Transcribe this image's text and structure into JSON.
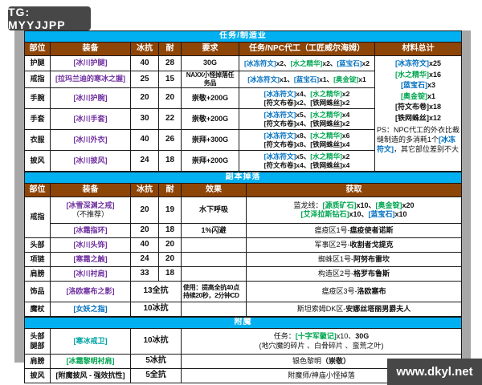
{
  "page": {
    "tg_badge": "TG: MYYJJPP",
    "watermark": "www.dkyl.net"
  },
  "colors": {
    "section_band": "#00b0f0",
    "header_row": "#8e4508",
    "item_epic_purple": "#7030a0",
    "item_rare_blue": "#0070c0",
    "item_green": "#00a550",
    "item_teal": "#00a3a3",
    "badge_gray": "#474747",
    "strip_gray": "#a7a7a7"
  },
  "s1": {
    "title": "任务/制造业",
    "headers": [
      "部位",
      "装备",
      "冰抗",
      "耐",
      "要求",
      "任务/NPC代工（工匠威尔海姆）",
      "材料总计"
    ],
    "rows": [
      {
        "slot": "护腿",
        "item": [
          {
            "t": "[冰川护腿]",
            "c": "pu"
          }
        ],
        "res": "40",
        "sta": "28",
        "req": "30G",
        "mats": [
          [
            {
              "t": "[冰冻符文]",
              "c": "bl"
            },
            {
              "t": "x2、",
              "c": "bk"
            },
            {
              "t": "[水之精华]",
              "c": "gr"
            },
            {
              "t": "x2、",
              "c": "bk"
            },
            {
              "t": "[蓝宝石]",
              "c": "bl"
            },
            {
              "t": "x2",
              "c": "bk"
            }
          ]
        ]
      },
      {
        "slot": "戒指",
        "item": [
          {
            "t": "[拉玛兰迪的寒冰之握]",
            "c": "pu"
          }
        ],
        "res": "25",
        "sta": "15",
        "req": "NAXX小怪掉落任务品",
        "mats": [
          [
            {
              "t": "[冰冻符文]",
              "c": "bl"
            },
            {
              "t": "x1、",
              "c": "bk"
            },
            {
              "t": "[蓝宝石]",
              "c": "bl"
            },
            {
              "t": "x1、",
              "c": "bk"
            },
            {
              "t": "[奥金锭]",
              "c": "gr"
            },
            {
              "t": "x1",
              "c": "bk"
            }
          ]
        ]
      },
      {
        "slot": "手腕",
        "item": [
          {
            "t": "[冰川护腕]",
            "c": "pu"
          }
        ],
        "res": "20",
        "sta": "20",
        "req": "崇敬+200G",
        "mats": [
          [
            {
              "t": "[冰冻符文]",
              "c": "bl"
            },
            {
              "t": "x4、",
              "c": "bk"
            },
            {
              "t": "[水之精华]",
              "c": "gr"
            },
            {
              "t": "x2",
              "c": "bk"
            }
          ],
          [
            {
              "t": "[符文布卷]",
              "c": "bk"
            },
            {
              "t": "x2、",
              "c": "bk"
            },
            {
              "t": "[铁网蛛丝]",
              "c": "bk"
            },
            {
              "t": "x2",
              "c": "bk"
            }
          ]
        ]
      },
      {
        "slot": "手套",
        "item": [
          {
            "t": "[冰川手套]",
            "c": "pu"
          }
        ],
        "res": "30",
        "sta": "22",
        "req": "崇敬+200G",
        "mats": [
          [
            {
              "t": "[冰冻符文]",
              "c": "bl"
            },
            {
              "t": "x5、",
              "c": "bk"
            },
            {
              "t": "[水之精华]",
              "c": "gr"
            },
            {
              "t": "x4",
              "c": "bk"
            }
          ],
          [
            {
              "t": "[符文布卷]",
              "c": "bk"
            },
            {
              "t": "x4、",
              "c": "bk"
            },
            {
              "t": "[铁网蛛丝]",
              "c": "bk"
            },
            {
              "t": "x2",
              "c": "bk"
            }
          ]
        ]
      },
      {
        "slot": "衣服",
        "item": [
          {
            "t": "[冰川外衣]",
            "c": "pu"
          }
        ],
        "res": "40",
        "sta": "26",
        "req": "崇拜+300G",
        "mats": [
          [
            {
              "t": "[冰冻符文]",
              "c": "bl"
            },
            {
              "t": "x8、",
              "c": "bk"
            },
            {
              "t": "[水之精华]",
              "c": "gr"
            },
            {
              "t": "x6",
              "c": "bk"
            }
          ],
          [
            {
              "t": "[符文布卷]",
              "c": "bk"
            },
            {
              "t": "x8、",
              "c": "bk"
            },
            {
              "t": "[铁网蛛丝]",
              "c": "bk"
            },
            {
              "t": "x4",
              "c": "bk"
            }
          ]
        ]
      },
      {
        "slot": "披风",
        "item": [
          {
            "t": "[冰川披风]",
            "c": "pu"
          }
        ],
        "res": "24",
        "sta": "18",
        "req": "崇拜+200G",
        "mats": [
          [
            {
              "t": "[冰冻符文]",
              "c": "bl"
            },
            {
              "t": "x5、",
              "c": "bk"
            },
            {
              "t": "[水之精华]",
              "c": "gr"
            },
            {
              "t": "x2",
              "c": "bk"
            }
          ],
          [
            {
              "t": "[符文布卷]",
              "c": "bk"
            },
            {
              "t": "x4、",
              "c": "bk"
            },
            {
              "t": "[铁网蛛丝]",
              "c": "bk"
            },
            {
              "t": "x4",
              "c": "bk"
            }
          ]
        ]
      }
    ],
    "totals": [
      [
        {
          "t": "[冰冻符文]",
          "c": "bl"
        },
        {
          "t": "x25",
          "c": "bk"
        }
      ],
      [
        {
          "t": "[水之精华]",
          "c": "gr"
        },
        {
          "t": "x16",
          "c": "bk"
        }
      ],
      [
        {
          "t": "[蓝宝石]",
          "c": "bl"
        },
        {
          "t": "x3",
          "c": "bk"
        }
      ],
      [
        {
          "t": "[奥金锭]",
          "c": "gr"
        },
        {
          "t": "x1",
          "c": "bk"
        }
      ],
      [
        {
          "t": "[符文布卷]",
          "c": "bk"
        },
        {
          "t": "x18",
          "c": "bk"
        }
      ],
      [
        {
          "t": "[铁网蛛丝]",
          "c": "bk"
        },
        {
          "t": "x12",
          "c": "bk"
        }
      ]
    ],
    "ps": [
      {
        "t": "PS：NPC代工的外衣比裁缝制造的多消耗1个",
        "c": "n"
      },
      {
        "t": "[冰冻符文]",
        "c": "bl"
      },
      {
        "t": "，其它部位差别不大",
        "c": "n"
      }
    ]
  },
  "s2": {
    "title": "副本掉落",
    "headers": [
      "部位",
      "装备",
      "冰抗",
      "耐",
      "效果",
      "获取"
    ],
    "rows": [
      {
        "slot": "戒指",
        "item_lines": [
          [
            {
              "t": "[冰雪深渊之戒]",
              "c": "pu"
            }
          ],
          [
            {
              "t": "（不推荐）",
              "c": "n"
            }
          ]
        ],
        "res": "20",
        "sta": "19",
        "eff": [
          [
            {
              "t": "水下呼吸",
              "c": "bk"
            }
          ]
        ],
        "obtain": [
          [
            {
              "t": "蓝龙线：",
              "c": "n"
            },
            {
              "t": "[源质矿石]",
              "c": "gr"
            },
            {
              "t": "x10、",
              "c": "bk"
            },
            {
              "t": "[奥金锭]",
              "c": "gr"
            },
            {
              "t": "x20",
              "c": "bk"
            }
          ],
          [
            {
              "t": "[艾泽拉斯钻石]",
              "c": "gr"
            },
            {
              "t": "x10、",
              "c": "bk"
            },
            {
              "t": "[蓝宝石]",
              "c": "bl"
            },
            {
              "t": "x10",
              "c": "bk"
            }
          ]
        ]
      },
      {
        "item": [
          {
            "t": "[冰霜指环]",
            "c": "pu"
          }
        ],
        "res": "20",
        "sta": "18",
        "eff": [
          [
            {
              "t": "1%闪避",
              "c": "bk"
            }
          ]
        ],
        "obtain": [
          [
            {
              "t": "瘟疫区1号-",
              "c": "n"
            },
            {
              "t": "瘟疫使者诺斯",
              "c": "bk"
            }
          ]
        ]
      },
      {
        "slot": "头部",
        "item": [
          {
            "t": "[冰川头饰]",
            "c": "pu"
          }
        ],
        "res": "40",
        "sta": "20",
        "obtain": [
          [
            {
              "t": "军事区2号-",
              "c": "n"
            },
            {
              "t": "收割者戈提克",
              "c": "bk"
            }
          ]
        ]
      },
      {
        "slot": "项链",
        "item": [
          {
            "t": "[寒霜之触]",
            "c": "pu"
          }
        ],
        "res": "24",
        "sta": "20",
        "obtain": [
          [
            {
              "t": "蜘蛛区1号-",
              "c": "n"
            },
            {
              "t": "阿努布雷坎",
              "c": "bk"
            }
          ]
        ]
      },
      {
        "slot": "肩膀",
        "item": [
          {
            "t": "[冰川衬肩]",
            "c": "pu"
          }
        ],
        "res": "33",
        "sta": "18",
        "obtain": [
          [
            {
              "t": "构造区2号-",
              "c": "n"
            },
            {
              "t": "格罗布鲁斯",
              "c": "bk"
            }
          ]
        ]
      },
      {
        "slot": "饰品",
        "item": [
          {
            "t": "[洛欧塞布之影]",
            "c": "pu"
          }
        ],
        "resall": "13全抗",
        "eff": [
          [
            {
              "t": "使用：提高全抗40点",
              "c": "bk"
            }
          ],
          [
            {
              "t": "持续20秒，2分钟CD",
              "c": "bk"
            }
          ]
        ],
        "obtain": [
          [
            {
              "t": "瘟疫区3号-",
              "c": "n"
            },
            {
              "t": "洛欧塞布",
              "c": "bk"
            }
          ]
        ]
      },
      {
        "slot": "魔杖",
        "item": [
          {
            "t": "[女妖之指]",
            "c": "bl"
          }
        ],
        "resall": "10冰抗",
        "obtain": [
          [
            {
              "t": "斯坦索姆DK区-",
              "c": "n"
            },
            {
              "t": "安娜丝塔丽男爵夫人",
              "c": "bk"
            }
          ]
        ]
      }
    ]
  },
  "s3": {
    "title": "附魔",
    "rows": [
      {
        "slot_lines": [
          [
            {
              "t": "头部",
              "c": "bk"
            }
          ],
          [
            {
              "t": "腿部",
              "c": "bk"
            }
          ]
        ],
        "item": [
          {
            "t": "[寒冰戒卫]",
            "c": "te"
          }
        ],
        "val": "10冰抗",
        "obtain": [
          [
            {
              "t": "任务：",
              "c": "n"
            },
            {
              "t": "[十字军徽记]",
              "c": "gr"
            },
            {
              "t": "x10、",
              "c": "n"
            },
            {
              "t": "30G",
              "c": "bk"
            }
          ],
          [
            {
              "t": "(地穴魔的碎片 、白骨碎片 、蛮荒之叶)",
              "c": "n"
            }
          ]
        ]
      },
      {
        "slot": "肩膀",
        "item": [
          {
            "t": "[冰霜黎明衬肩]",
            "c": "gr"
          }
        ],
        "val": "5冰抗",
        "obtain": [
          [
            {
              "t": "银色黎明",
              "c": "n"
            },
            {
              "t": "（崇敬）",
              "c": "bk"
            }
          ]
        ]
      },
      {
        "slot": "披风",
        "item": [
          {
            "t": "[附魔披风 - 强效抗性]",
            "c": "bk"
          }
        ],
        "val": "5全抗",
        "obtain": [
          [
            {
              "t": "附魔师/神庙小怪掉落",
              "c": "n"
            }
          ]
        ]
      }
    ]
  }
}
